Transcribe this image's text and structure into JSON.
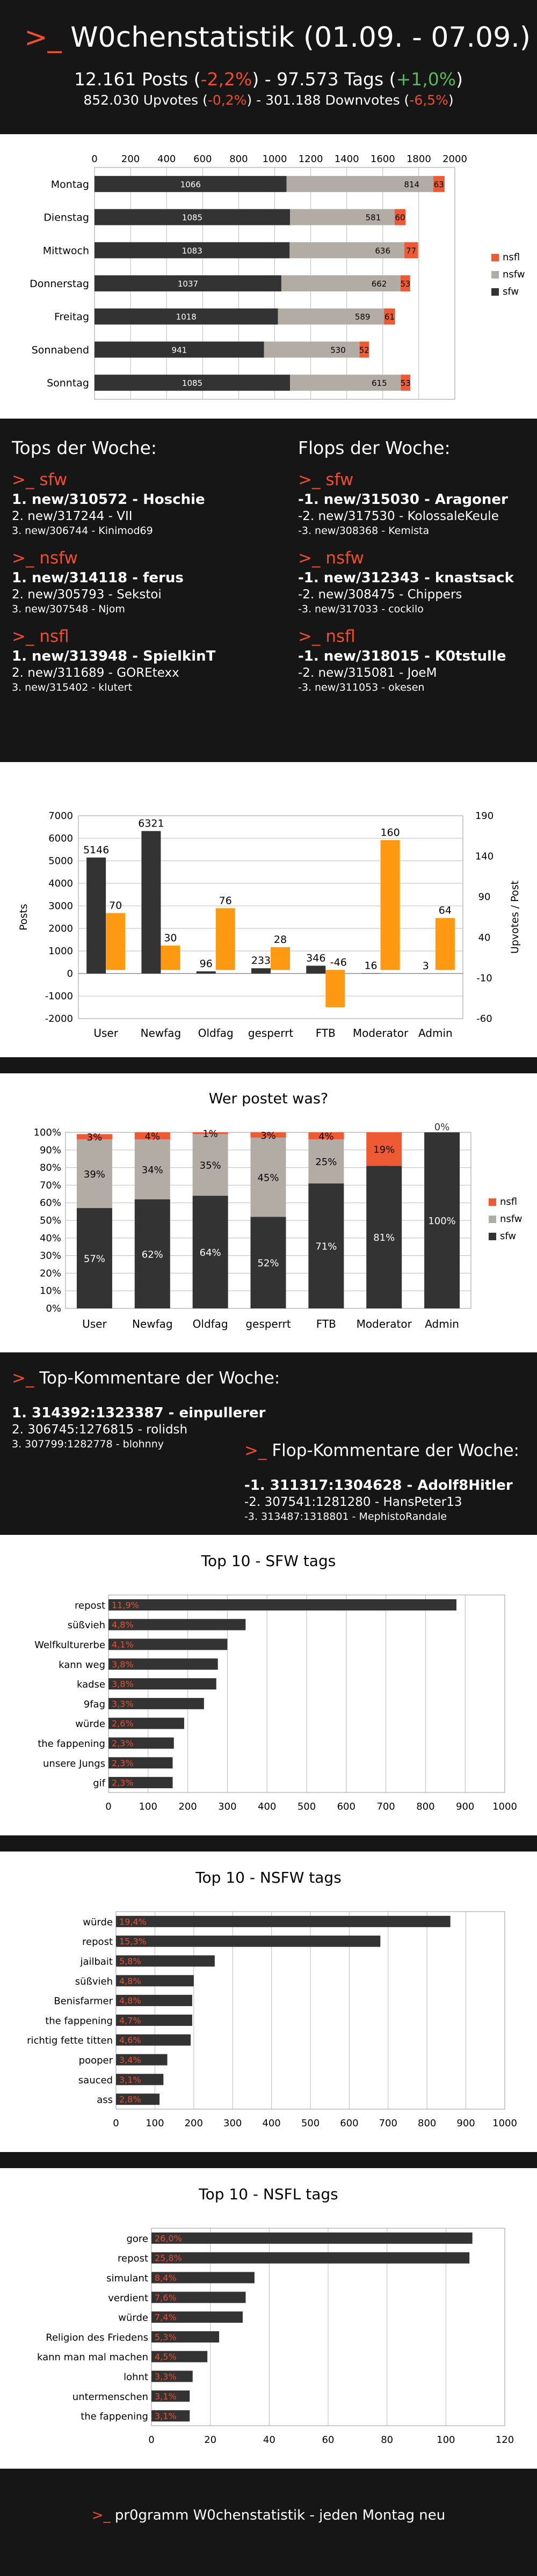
{
  "header": {
    "prompt": ">_",
    "title": "W0chenstatistik (01.09. - 07.09.)",
    "posts_count": "12.161",
    "posts_label": "Posts",
    "posts_change": "-2,2%",
    "tags_count": "97.573",
    "tags_label": "Tags",
    "tags_change": "+1,0%",
    "upvotes_count": "852.030",
    "upvotes_label": "Upvotes",
    "upvotes_change": "-0,2%",
    "downvotes_count": "301.188",
    "downvotes_label": "Downvotes",
    "downvotes_change": "-6,5%"
  },
  "colors": {
    "sfw": "#333333",
    "nsfw": "#b2aca5",
    "nsfl": "#ee5a33",
    "orange": "#ff9911",
    "red_text": "#ee4d2e",
    "green_text": "#5bb75b"
  },
  "weekday_chart": {
    "chart_data": {
      "type": "bar",
      "orientation": "horizontal",
      "stacked": true,
      "categories": [
        "Montag",
        "Dienstag",
        "Mittwoch",
        "Donnerstag",
        "Freitag",
        "Sonnabend",
        "Sonntag"
      ],
      "series": [
        {
          "name": "sfw",
          "values": [
            1066,
            1085,
            1083,
            1037,
            1018,
            941,
            1085
          ]
        },
        {
          "name": "nsfw",
          "values": [
            814,
            581,
            636,
            662,
            589,
            530,
            615
          ]
        },
        {
          "name": "nsfl",
          "values": [
            63,
            60,
            77,
            53,
            61,
            52,
            53
          ]
        }
      ],
      "xlim": [
        0,
        2000
      ],
      "x_ticks": [
        0,
        200,
        400,
        600,
        800,
        1000,
        1200,
        1400,
        1600,
        1800,
        2000
      ],
      "legend_position": "right",
      "grid": true
    }
  },
  "tops": {
    "title": "Tops der Woche:",
    "categories": [
      {
        "prompt": ">_",
        "name": "sfw",
        "entries": [
          "1. new/310572 - Hoschie",
          "2. new/317244 - VII",
          "3. new/306744 - Kinimod69"
        ]
      },
      {
        "prompt": ">_",
        "name": "nsfw",
        "entries": [
          "1. new/314118 - ferus",
          "2. new/305793 - Sekstoi",
          "3. new/307548 - Njom"
        ]
      },
      {
        "prompt": ">_",
        "name": "nsfl",
        "entries": [
          "1. new/313948 - SpielkinT",
          "2. new/311689 - GOREtexx",
          "3. new/315402 - klutert"
        ]
      }
    ]
  },
  "flops": {
    "title": "Flops der Woche:",
    "categories": [
      {
        "prompt": ">_",
        "name": "sfw",
        "entries": [
          "-1. new/315030 - Aragoner",
          "-2. new/317530 - KolossaleKeule",
          "-3. new/308368 - Kemista"
        ]
      },
      {
        "prompt": ">_",
        "name": "nsfw",
        "entries": [
          "-1. new/312343 - knastsack",
          "-2. new/308475 - Chippers",
          "-3. new/317033 - cockilo"
        ]
      },
      {
        "prompt": ">_",
        "name": "nsfl",
        "entries": [
          "-1. new/318015 - K0tstulle",
          "-2. new/315081 - JoeM",
          "-3. new/311053 - okesen"
        ]
      }
    ]
  },
  "usergroup_chart": {
    "chart_data": {
      "type": "bar",
      "dual_axis": true,
      "categories": [
        "User",
        "Newfag",
        "Oldfag",
        "gesperrt",
        "FTB",
        "Moderator",
        "Admin"
      ],
      "series": [
        {
          "axis": "left",
          "values": [
            5146,
            6321,
            96,
            233,
            346,
            16,
            3
          ],
          "value_labels": [
            "5146",
            "6321",
            "96",
            "233",
            "346",
            "16",
            "3"
          ]
        },
        {
          "axis": "right",
          "values": [
            70,
            30,
            76,
            28,
            -46,
            160,
            64
          ],
          "value_labels": [
            "70",
            "30",
            "76",
            "28",
            "-46",
            "160",
            "64"
          ]
        }
      ],
      "ylabel": "Posts",
      "y2label": "Upvotes / Post",
      "ylim": [
        -2000,
        7000
      ],
      "y_ticks": [
        -2000,
        -1000,
        0,
        1000,
        2000,
        3000,
        4000,
        5000,
        6000,
        7000
      ],
      "y2lim": [
        -60,
        190
      ],
      "y2_ticks": [
        -60,
        -10,
        40,
        90,
        140,
        190
      ],
      "grid": true
    }
  },
  "share_chart": {
    "chart_data": {
      "type": "bar",
      "stacked": true,
      "percent": true,
      "title": "Wer postet was?",
      "categories": [
        "User",
        "Newfag",
        "Oldfag",
        "gesperrt",
        "FTB",
        "Moderator",
        "Admin"
      ],
      "series": [
        {
          "name": "sfw",
          "values": [
            57,
            62,
            64,
            52,
            71,
            81,
            100
          ],
          "labels": [
            "57%",
            "62%",
            "64%",
            "52%",
            "71%",
            "81%",
            "100%"
          ]
        },
        {
          "name": "nsfw",
          "values": [
            39,
            34,
            35,
            45,
            25,
            0,
            0
          ],
          "labels": [
            "39%",
            "34%",
            "35%",
            "45%",
            "25%",
            "0%",
            "0%"
          ]
        },
        {
          "name": "nsfl",
          "values": [
            3,
            4,
            1,
            3,
            4,
            19,
            0
          ],
          "labels": [
            "3%",
            "4%",
            "1%",
            "3%",
            "4%",
            "19%",
            ""
          ]
        }
      ],
      "ylim": [
        0,
        100
      ],
      "y_ticks": [
        "0%",
        "10%",
        "20%",
        "30%",
        "40%",
        "50%",
        "60%",
        "70%",
        "80%",
        "90%",
        "100%"
      ],
      "legend_position": "right",
      "grid": true
    }
  },
  "comments": {
    "prompt": ">_",
    "top_title": "Top-Kommentare der Woche:",
    "top": [
      "1. 314392:1323387 - einpullerer",
      "2. 306745:1276815 - rolidsh",
      "3. 307799:1282778 - blohnny"
    ],
    "flop_title": "Flop-Kommentare der Woche:",
    "flop": [
      "-1. 311317:1304628 - Adolf8Hitler",
      "-2. 307541:1281280 - HansPeter13",
      "-3. 313487:1318801 - MephistoRandale"
    ]
  },
  "sfw_tags_chart": {
    "chart_data": {
      "type": "bar",
      "orientation": "horizontal",
      "title": "Top 10 - SFW tags",
      "categories": [
        "repost",
        "süßvieh",
        "Welfkulturerbe",
        "kann weg",
        "kadse",
        "9fag",
        "würde",
        "the fappening",
        "unsere Jungs",
        "gif"
      ],
      "values": [
        878,
        346,
        300,
        276,
        272,
        241,
        191,
        165,
        162,
        162
      ],
      "value_labels": [
        "11,9%",
        "4,8%",
        "4,1%",
        "3,8%",
        "3,8%",
        "3,3%",
        "2,6%",
        "2,3%",
        "2,3%",
        "2,3%"
      ],
      "xlim": [
        0,
        1000
      ],
      "x_ticks": [
        0,
        100,
        200,
        300,
        400,
        500,
        600,
        700,
        800,
        900,
        1000
      ],
      "grid": true
    }
  },
  "nsfw_tags_chart": {
    "chart_data": {
      "type": "bar",
      "orientation": "horizontal",
      "title": "Top 10 - NSFW tags",
      "categories": [
        "würde",
        "repost",
        "jailbait",
        "süßvieh",
        "Benisfarmer",
        "the fappening",
        "richtig fette titten",
        "pooper",
        "sauced",
        "ass"
      ],
      "values": [
        860,
        680,
        254,
        200,
        196,
        196,
        192,
        132,
        122,
        112
      ],
      "value_labels": [
        "19,4%",
        "15,3%",
        "5,8%",
        "4,8%",
        "4,8%",
        "4,7%",
        "4,6%",
        "3,4%",
        "3,1%",
        "2,8%"
      ],
      "xlim": [
        0,
        1000
      ],
      "x_ticks": [
        0,
        100,
        200,
        300,
        400,
        500,
        600,
        700,
        800,
        900,
        1000
      ],
      "grid": true
    }
  },
  "nsfl_tags_chart": {
    "chart_data": {
      "type": "bar",
      "orientation": "horizontal",
      "title": "Top 10 - NSFL tags",
      "categories": [
        "gore",
        "repost",
        "simulant",
        "verdient",
        "würde",
        "Religion des Friedens",
        "kann man mal machen",
        "lohnt",
        "untermenschen",
        "the fappening"
      ],
      "values": [
        109,
        108,
        35,
        32,
        31,
        23,
        19,
        14,
        13,
        13
      ],
      "value_labels": [
        "26,0%",
        "25,8%",
        "8,4%",
        "7,6%",
        "7,4%",
        "5,3%",
        "4,5%",
        "3,3%",
        "3,1%",
        "3,1%"
      ],
      "xlim": [
        0,
        120
      ],
      "x_ticks": [
        0,
        20,
        40,
        60,
        80,
        100,
        120
      ],
      "grid": true
    }
  },
  "footer": {
    "prompt": ">_",
    "text": "pr0gramm W0chenstatistik - jeden Montag neu"
  }
}
